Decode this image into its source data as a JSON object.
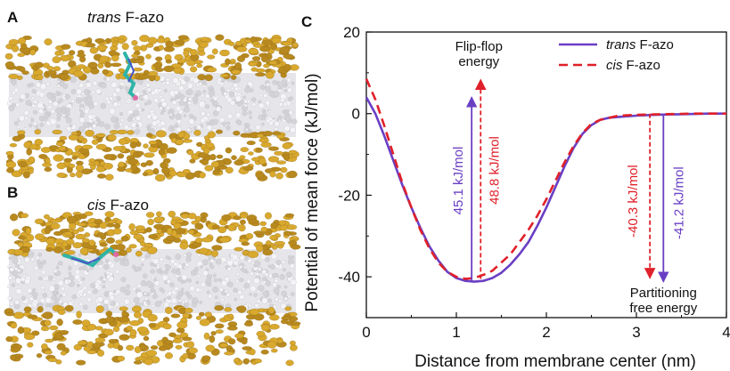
{
  "panels": {
    "a": {
      "letter": "A",
      "title_italic": "trans",
      "title_rest": " F-azo"
    },
    "b": {
      "letter": "B",
      "title_italic": "cis",
      "title_rest": " F-azo"
    },
    "c": {
      "letter": "C"
    }
  },
  "colors": {
    "trans": "#6a3fc4",
    "cis": "#e0202a",
    "headgroup": "#d9a92e",
    "lipid_tail": "#d4d4d8"
  },
  "chart_data": {
    "type": "line",
    "xlabel": "Distance from membrane center (nm)",
    "ylabel": "Potential of mean force (kJ/mol)",
    "xlim": [
      0,
      4
    ],
    "ylim": [
      -50,
      20
    ],
    "xticks": [
      0,
      1,
      2,
      3,
      4
    ],
    "yticks": [
      20,
      0,
      -20,
      -40
    ],
    "grid": false,
    "legend_position": "top-right",
    "series": [
      {
        "key": "trans",
        "name_italic": "trans",
        "name_rest": " F-azo",
        "style": "solid",
        "x": [
          0,
          0.1,
          0.2,
          0.3,
          0.4,
          0.5,
          0.6,
          0.7,
          0.8,
          0.9,
          1.0,
          1.1,
          1.2,
          1.3,
          1.4,
          1.5,
          1.6,
          1.7,
          1.8,
          1.9,
          2.0,
          2.1,
          2.2,
          2.3,
          2.4,
          2.5,
          2.6,
          2.7,
          2.8,
          3.0,
          3.2,
          3.4,
          3.6,
          3.8,
          4.0
        ],
        "y": [
          4,
          0,
          -5.5,
          -11.5,
          -17.5,
          -23,
          -28,
          -32.5,
          -36,
          -38.8,
          -40.3,
          -41,
          -41.2,
          -41,
          -40.3,
          -39,
          -37,
          -34.5,
          -31.5,
          -27.5,
          -23,
          -18,
          -13,
          -8.5,
          -5,
          -2.8,
          -1.5,
          -1,
          -0.8,
          -0.5,
          -0.3,
          -0.2,
          -0.1,
          0,
          0
        ]
      },
      {
        "key": "cis",
        "name_italic": "cis",
        "name_rest": " F-azo",
        "style": "dashed",
        "x": [
          0,
          0.1,
          0.2,
          0.3,
          0.4,
          0.5,
          0.6,
          0.7,
          0.8,
          0.9,
          1.0,
          1.1,
          1.2,
          1.3,
          1.4,
          1.5,
          1.6,
          1.7,
          1.8,
          1.9,
          2.0,
          2.1,
          2.2,
          2.3,
          2.4,
          2.5,
          2.6,
          2.7,
          2.8,
          3.0,
          3.2,
          3.4,
          3.6,
          3.8,
          4.0
        ],
        "y": [
          8.5,
          3.5,
          -3,
          -10,
          -17,
          -23,
          -28.5,
          -33,
          -36.5,
          -38.8,
          -40,
          -40.5,
          -40.3,
          -39.5,
          -38.5,
          -36.5,
          -34.5,
          -31.5,
          -28.5,
          -25,
          -21,
          -16.5,
          -12,
          -8,
          -4.8,
          -2.5,
          -1.5,
          -1,
          -0.5,
          -0.3,
          -0.2,
          -0.1,
          0,
          0,
          0
        ]
      }
    ],
    "annotations": {
      "flipflop_label_line1": "Flip-flop",
      "flipflop_label_line2": "energy",
      "partition_label_line1": "Partitioning",
      "partition_label_line2": "free energy",
      "values": [
        {
          "text": "45.1 kJ/mol",
          "series": "trans",
          "x": 1.17,
          "y_from": -41.2,
          "y_to": 4
        },
        {
          "text": "48.8 kJ/mol",
          "series": "cis",
          "x": 1.27,
          "y_from": -40.5,
          "y_to": 8.3
        },
        {
          "text": "-40.3 kJ/mol",
          "series": "cis",
          "x": 3.15,
          "y_from": 0,
          "y_to": -40.3
        },
        {
          "text": "-41.2 kJ/mol",
          "series": "trans",
          "x": 3.3,
          "y_from": 0,
          "y_to": -41.2
        }
      ]
    }
  }
}
